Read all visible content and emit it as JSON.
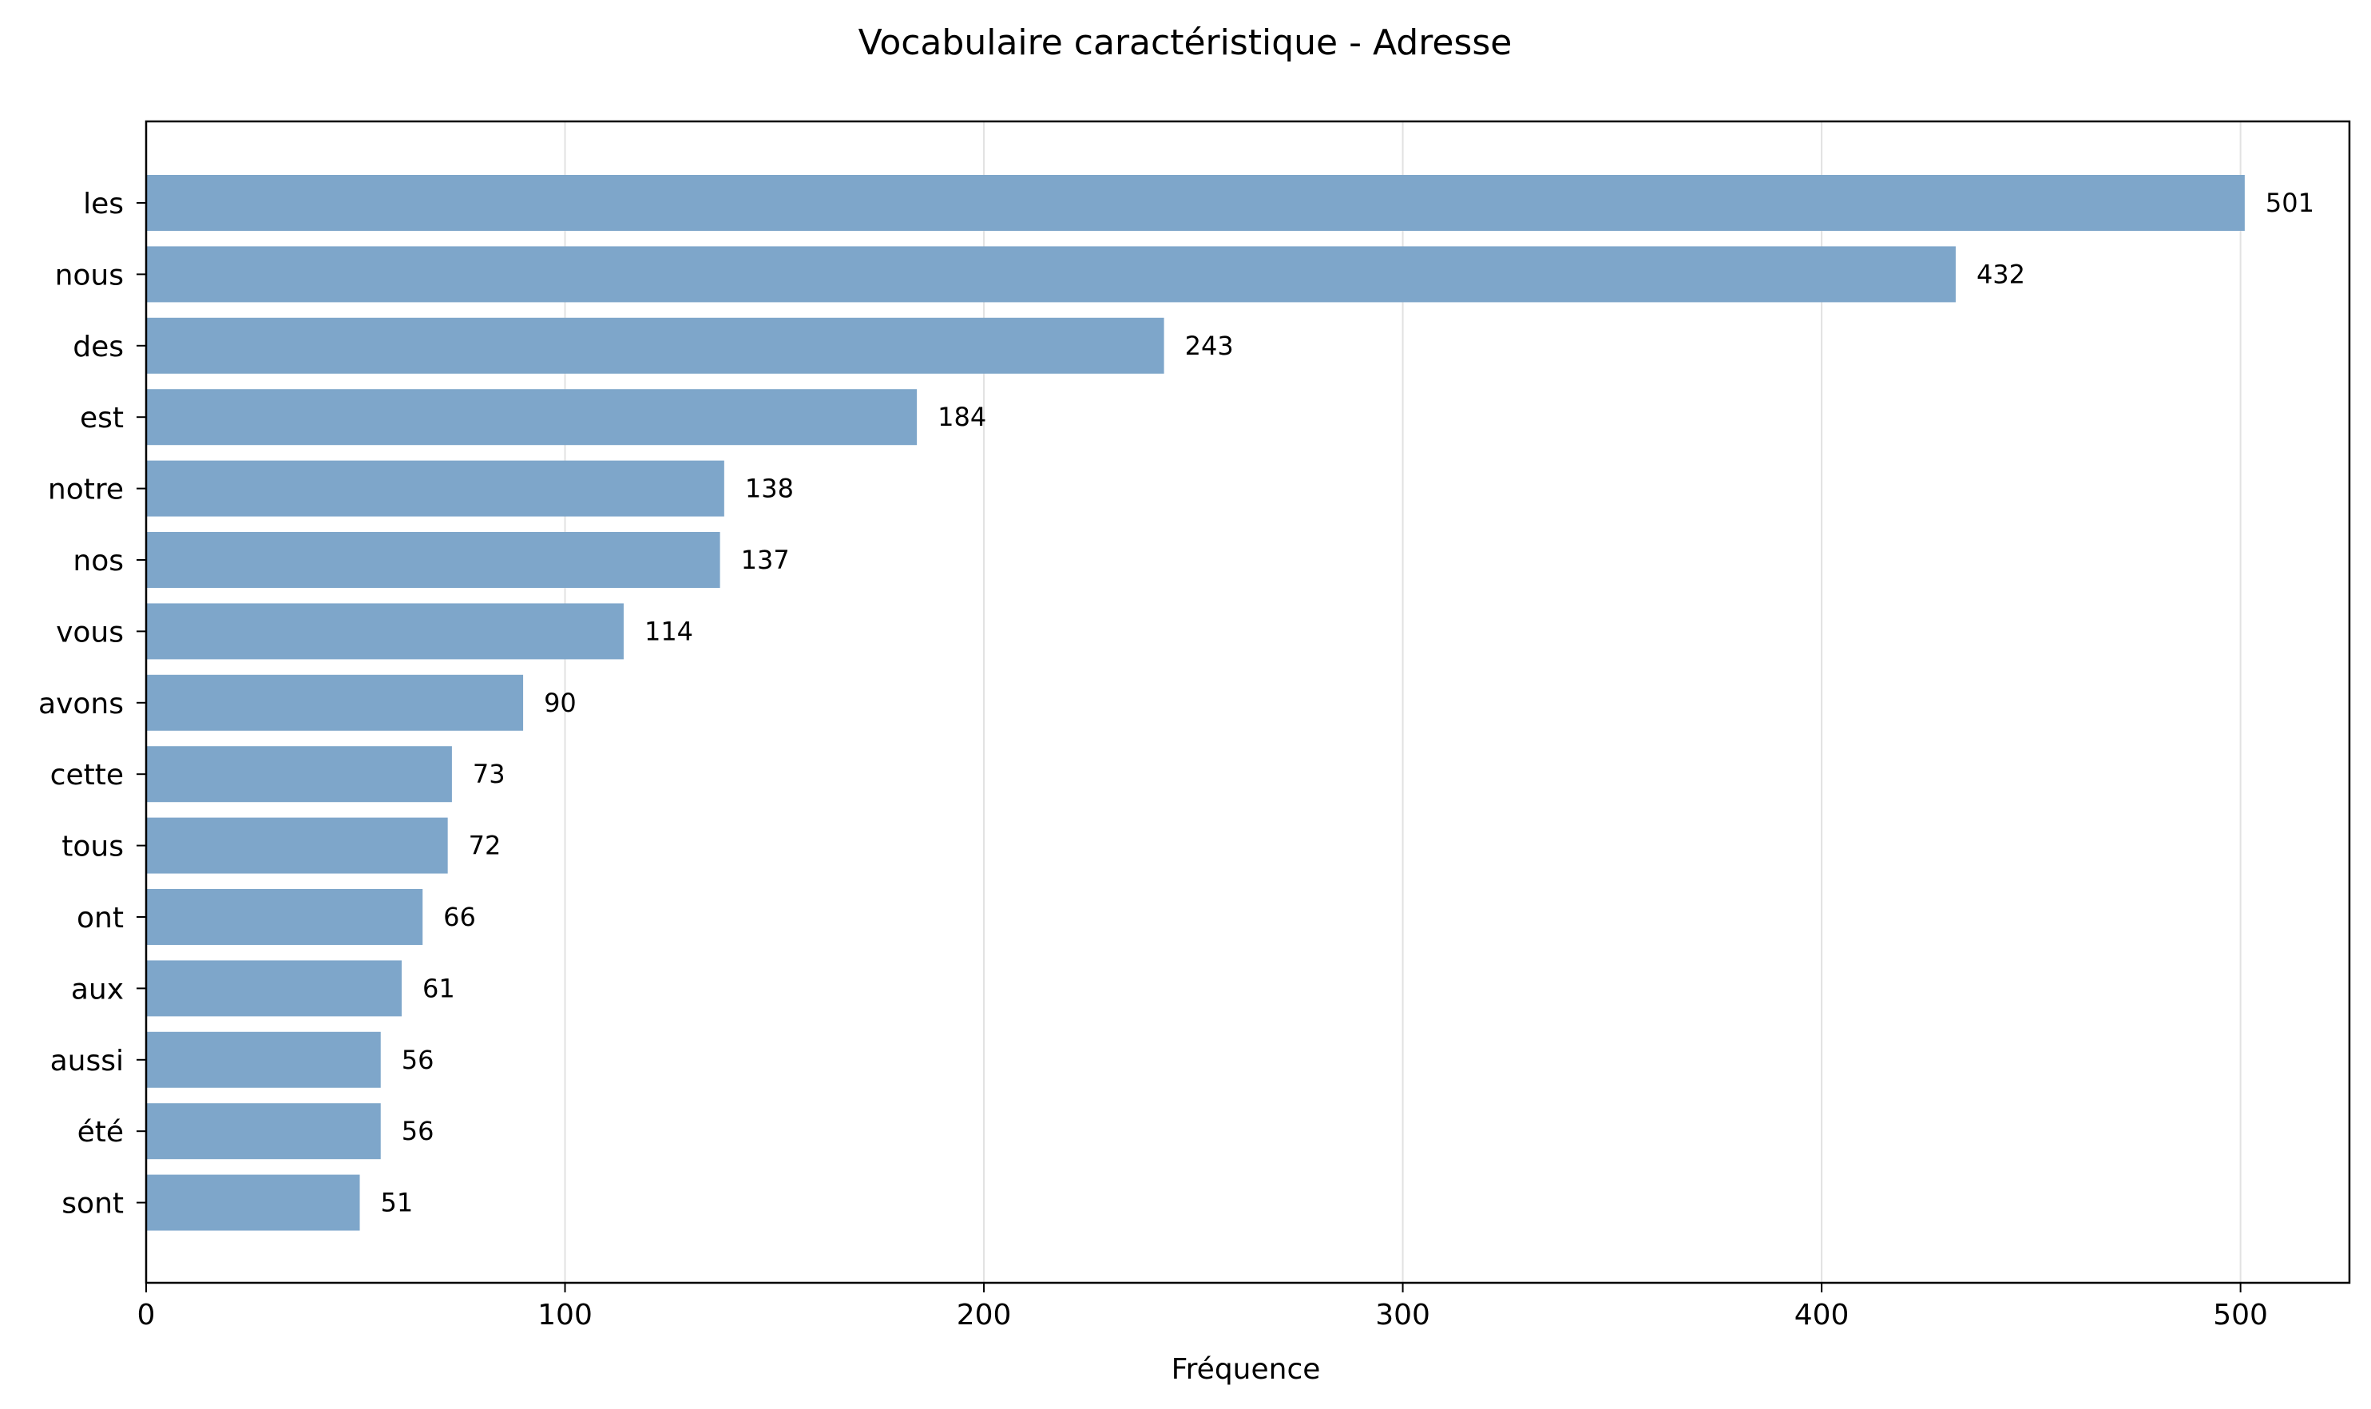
{
  "chart_data": {
    "type": "bar",
    "orientation": "horizontal",
    "title": "Vocabulaire caractéristique - Adresse",
    "xlabel": "Fréquence",
    "ylabel": "",
    "categories": [
      "les",
      "nous",
      "des",
      "est",
      "notre",
      "nos",
      "vous",
      "avons",
      "cette",
      "tous",
      "ont",
      "aux",
      "aussi",
      "été",
      "sont"
    ],
    "values": [
      501,
      432,
      243,
      184,
      138,
      137,
      114,
      90,
      73,
      72,
      66,
      61,
      56,
      56,
      51
    ],
    "value_labels": [
      "501",
      "432",
      "243",
      "184",
      "138",
      "137",
      "114",
      "90",
      "73",
      "72",
      "66",
      "61",
      "56",
      "56",
      "51"
    ],
    "xlim": [
      0,
      526
    ],
    "xticks": [
      0,
      100,
      200,
      300,
      400,
      500
    ],
    "xtick_labels": [
      "0",
      "100",
      "200",
      "300",
      "400",
      "500"
    ],
    "grid": "vertical",
    "bar_color": "#7ea6ca",
    "grid_color": "#e2e2e2"
  }
}
